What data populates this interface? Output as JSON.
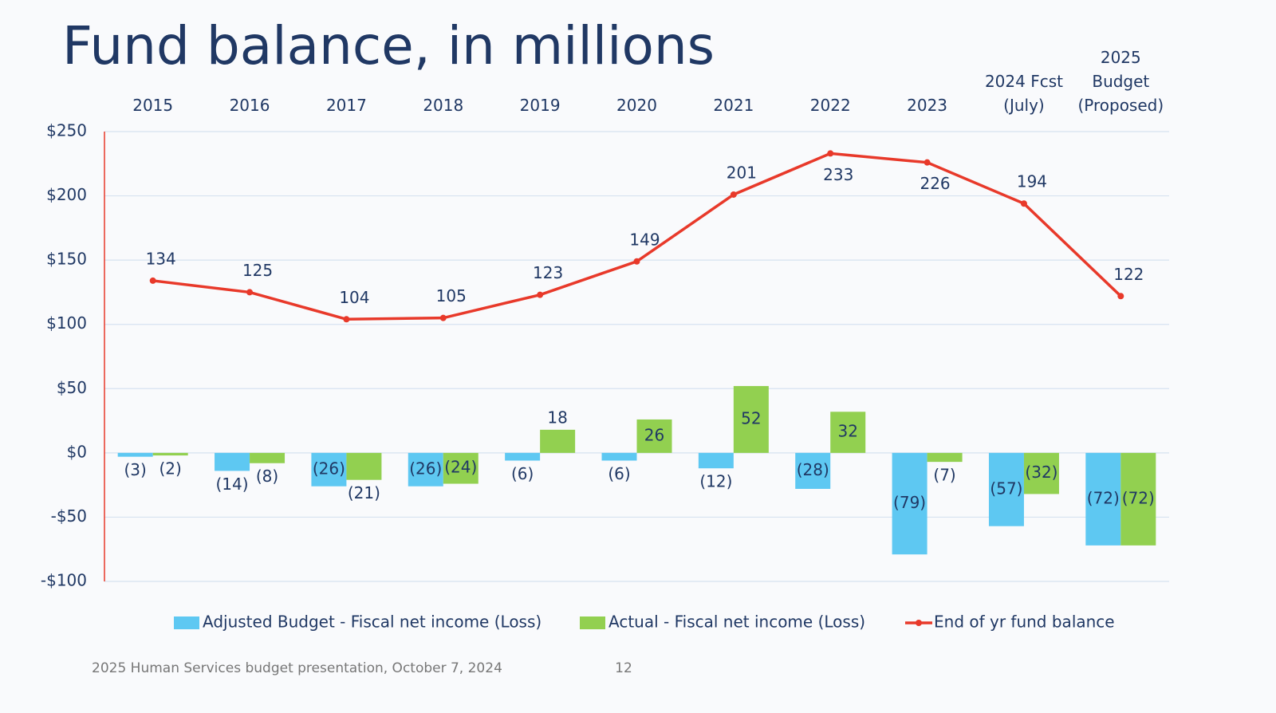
{
  "title": "Fund balance, in millions",
  "chart_data": {
    "type": "bar-line",
    "categories": [
      "2015",
      "2016",
      "2017",
      "2018",
      "2019",
      "2020",
      "2021",
      "2022",
      "2023",
      "2024 Fcst (July)",
      "2025 Budget (Proposed)"
    ],
    "series": [
      {
        "name": "Adjusted Budget - Fiscal net income (Loss)",
        "type": "bar",
        "color": "#5ec8f2",
        "values": [
          -3,
          -14,
          -26,
          -26,
          -6,
          -6,
          -12,
          -28,
          -79,
          -57,
          -72
        ],
        "value_labels": [
          "(3)",
          "(14)",
          "(26)",
          "(26)",
          "(6)",
          "(6)",
          "(12)",
          "(28)",
          "(79)",
          "(57)",
          "(72)"
        ]
      },
      {
        "name": "Actual - Fiscal net income (Loss)",
        "type": "bar",
        "color": "#92d050",
        "values": [
          -2,
          -8,
          -21,
          -24,
          18,
          26,
          52,
          32,
          -7,
          -32,
          -72
        ],
        "value_labels": [
          "(2)",
          "(8)",
          "(21)",
          "(24)",
          "18",
          "26",
          "52",
          "32",
          "(7)",
          "(32)",
          "(72)"
        ]
      },
      {
        "name": "End of yr fund balance",
        "type": "line",
        "color": "#e8392a",
        "values": [
          134,
          125,
          104,
          105,
          123,
          149,
          201,
          233,
          226,
          194,
          122
        ]
      }
    ],
    "ylim": [
      -100,
      250
    ],
    "yticks": [
      {
        "value": -100,
        "label": "-$100"
      },
      {
        "value": -50,
        "label": "-$50"
      },
      {
        "value": 0,
        "label": "$0"
      },
      {
        "value": 50,
        "label": "$50"
      },
      {
        "value": 100,
        "label": "$100"
      },
      {
        "value": 150,
        "label": "$150"
      },
      {
        "value": 200,
        "label": "$200"
      },
      {
        "value": 250,
        "label": "$250"
      }
    ],
    "grid": true
  },
  "footer": {
    "text": "2025 Human Services budget presentation, October 7, 2024",
    "page": "12"
  }
}
